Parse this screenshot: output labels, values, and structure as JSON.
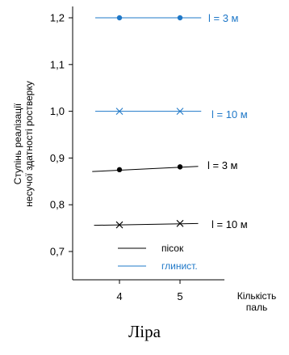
{
  "chart_data": {
    "type": "line",
    "ylabel_line1": "Ступінь реалізації",
    "ylabel_line2": "несучої здатності ростверку",
    "xlabel_line1": "Кількість",
    "xlabel_line2": "паль",
    "x_ticks": [
      "4",
      "5"
    ],
    "y_ticks": [
      "0,7",
      "0,8",
      "0,9",
      "1,0",
      "1,1",
      "1,2"
    ],
    "ylim": [
      0.65,
      1.23
    ],
    "grid": false,
    "colors": {
      "sand": "#000000",
      "clay": "#1f78c8"
    },
    "series": [
      {
        "name": "l = 3 м",
        "group": "clay",
        "marker": "dot",
        "x": [
          4,
          5
        ],
        "y": [
          1.2,
          1.2
        ],
        "line_from": 3.6,
        "line_to": 5.35,
        "y_from": 1.2,
        "y_to": 1.2
      },
      {
        "name": "l = 10 м",
        "group": "clay",
        "marker": "cross",
        "x": [
          4,
          5
        ],
        "y": [
          1.0,
          1.0
        ],
        "line_from": 3.6,
        "line_to": 5.35,
        "y_from": 1.0,
        "y_to": 1.0
      },
      {
        "name": "l = 3 м",
        "group": "sand",
        "marker": "dot",
        "x": [
          4,
          5
        ],
        "y": [
          0.875,
          0.881
        ],
        "line_from": 3.55,
        "line_to": 5.3,
        "y_from": 0.871,
        "y_to": 0.882
      },
      {
        "name": "l = 10 м",
        "group": "sand",
        "marker": "cross",
        "x": [
          4,
          5
        ],
        "y": [
          0.757,
          0.76
        ],
        "line_from": 3.58,
        "line_to": 5.3,
        "y_from": 0.756,
        "y_to": 0.76
      }
    ],
    "legend": [
      {
        "label": "пісок",
        "group": "sand"
      },
      {
        "label": "глинист.",
        "group": "clay"
      }
    ]
  },
  "caption": "Ліра"
}
